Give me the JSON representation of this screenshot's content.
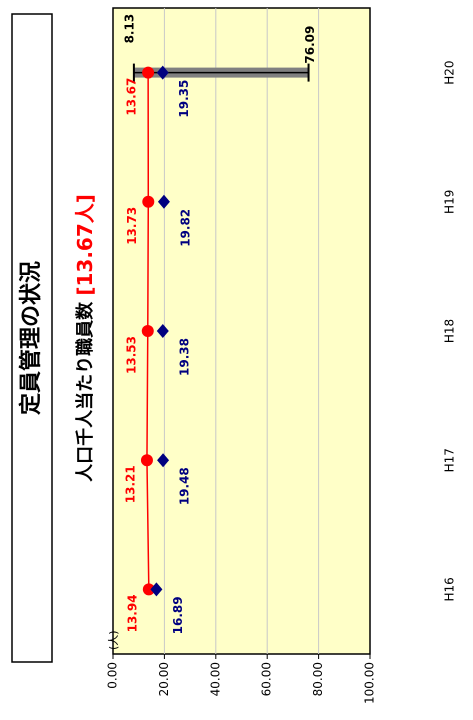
{
  "title": "定員管理の状況",
  "subtitle_prefix": "人口千人当たり職員数",
  "subtitle_highlight": "[13.67人]",
  "chart_data": {
    "type": "line",
    "categories": [
      "H16",
      "H17",
      "H18",
      "H19",
      "H20"
    ],
    "series": [
      {
        "values": [
          13.94,
          13.21,
          13.53,
          13.73,
          13.67
        ],
        "labels": [
          "13.94",
          "13.21",
          "13.53",
          "13.73",
          "13.67"
        ],
        "color": "#ff0000",
        "marker": "circle",
        "connected": true
      },
      {
        "values": [
          16.89,
          19.48,
          19.38,
          19.82,
          19.35
        ],
        "labels": [
          "16.89",
          "19.48",
          "19.38",
          "19.82",
          "19.35"
        ],
        "color": "#000080",
        "marker": "diamond",
        "connected": false
      }
    ],
    "range_bar": {
      "category": "H20",
      "min": 8.13,
      "max": 76.09,
      "min_label": "8.13",
      "max_label": "76.09",
      "color": "#808080"
    },
    "value_axis": {
      "min": 0,
      "max": 100,
      "ticks": [
        "0.00",
        "20.00",
        "40.00",
        "60.00",
        "80.00",
        "100.00"
      ],
      "unit_label": "(人)"
    },
    "plot_background": "#ffffc8",
    "gridlines": true,
    "orientation": "rotated-90"
  }
}
